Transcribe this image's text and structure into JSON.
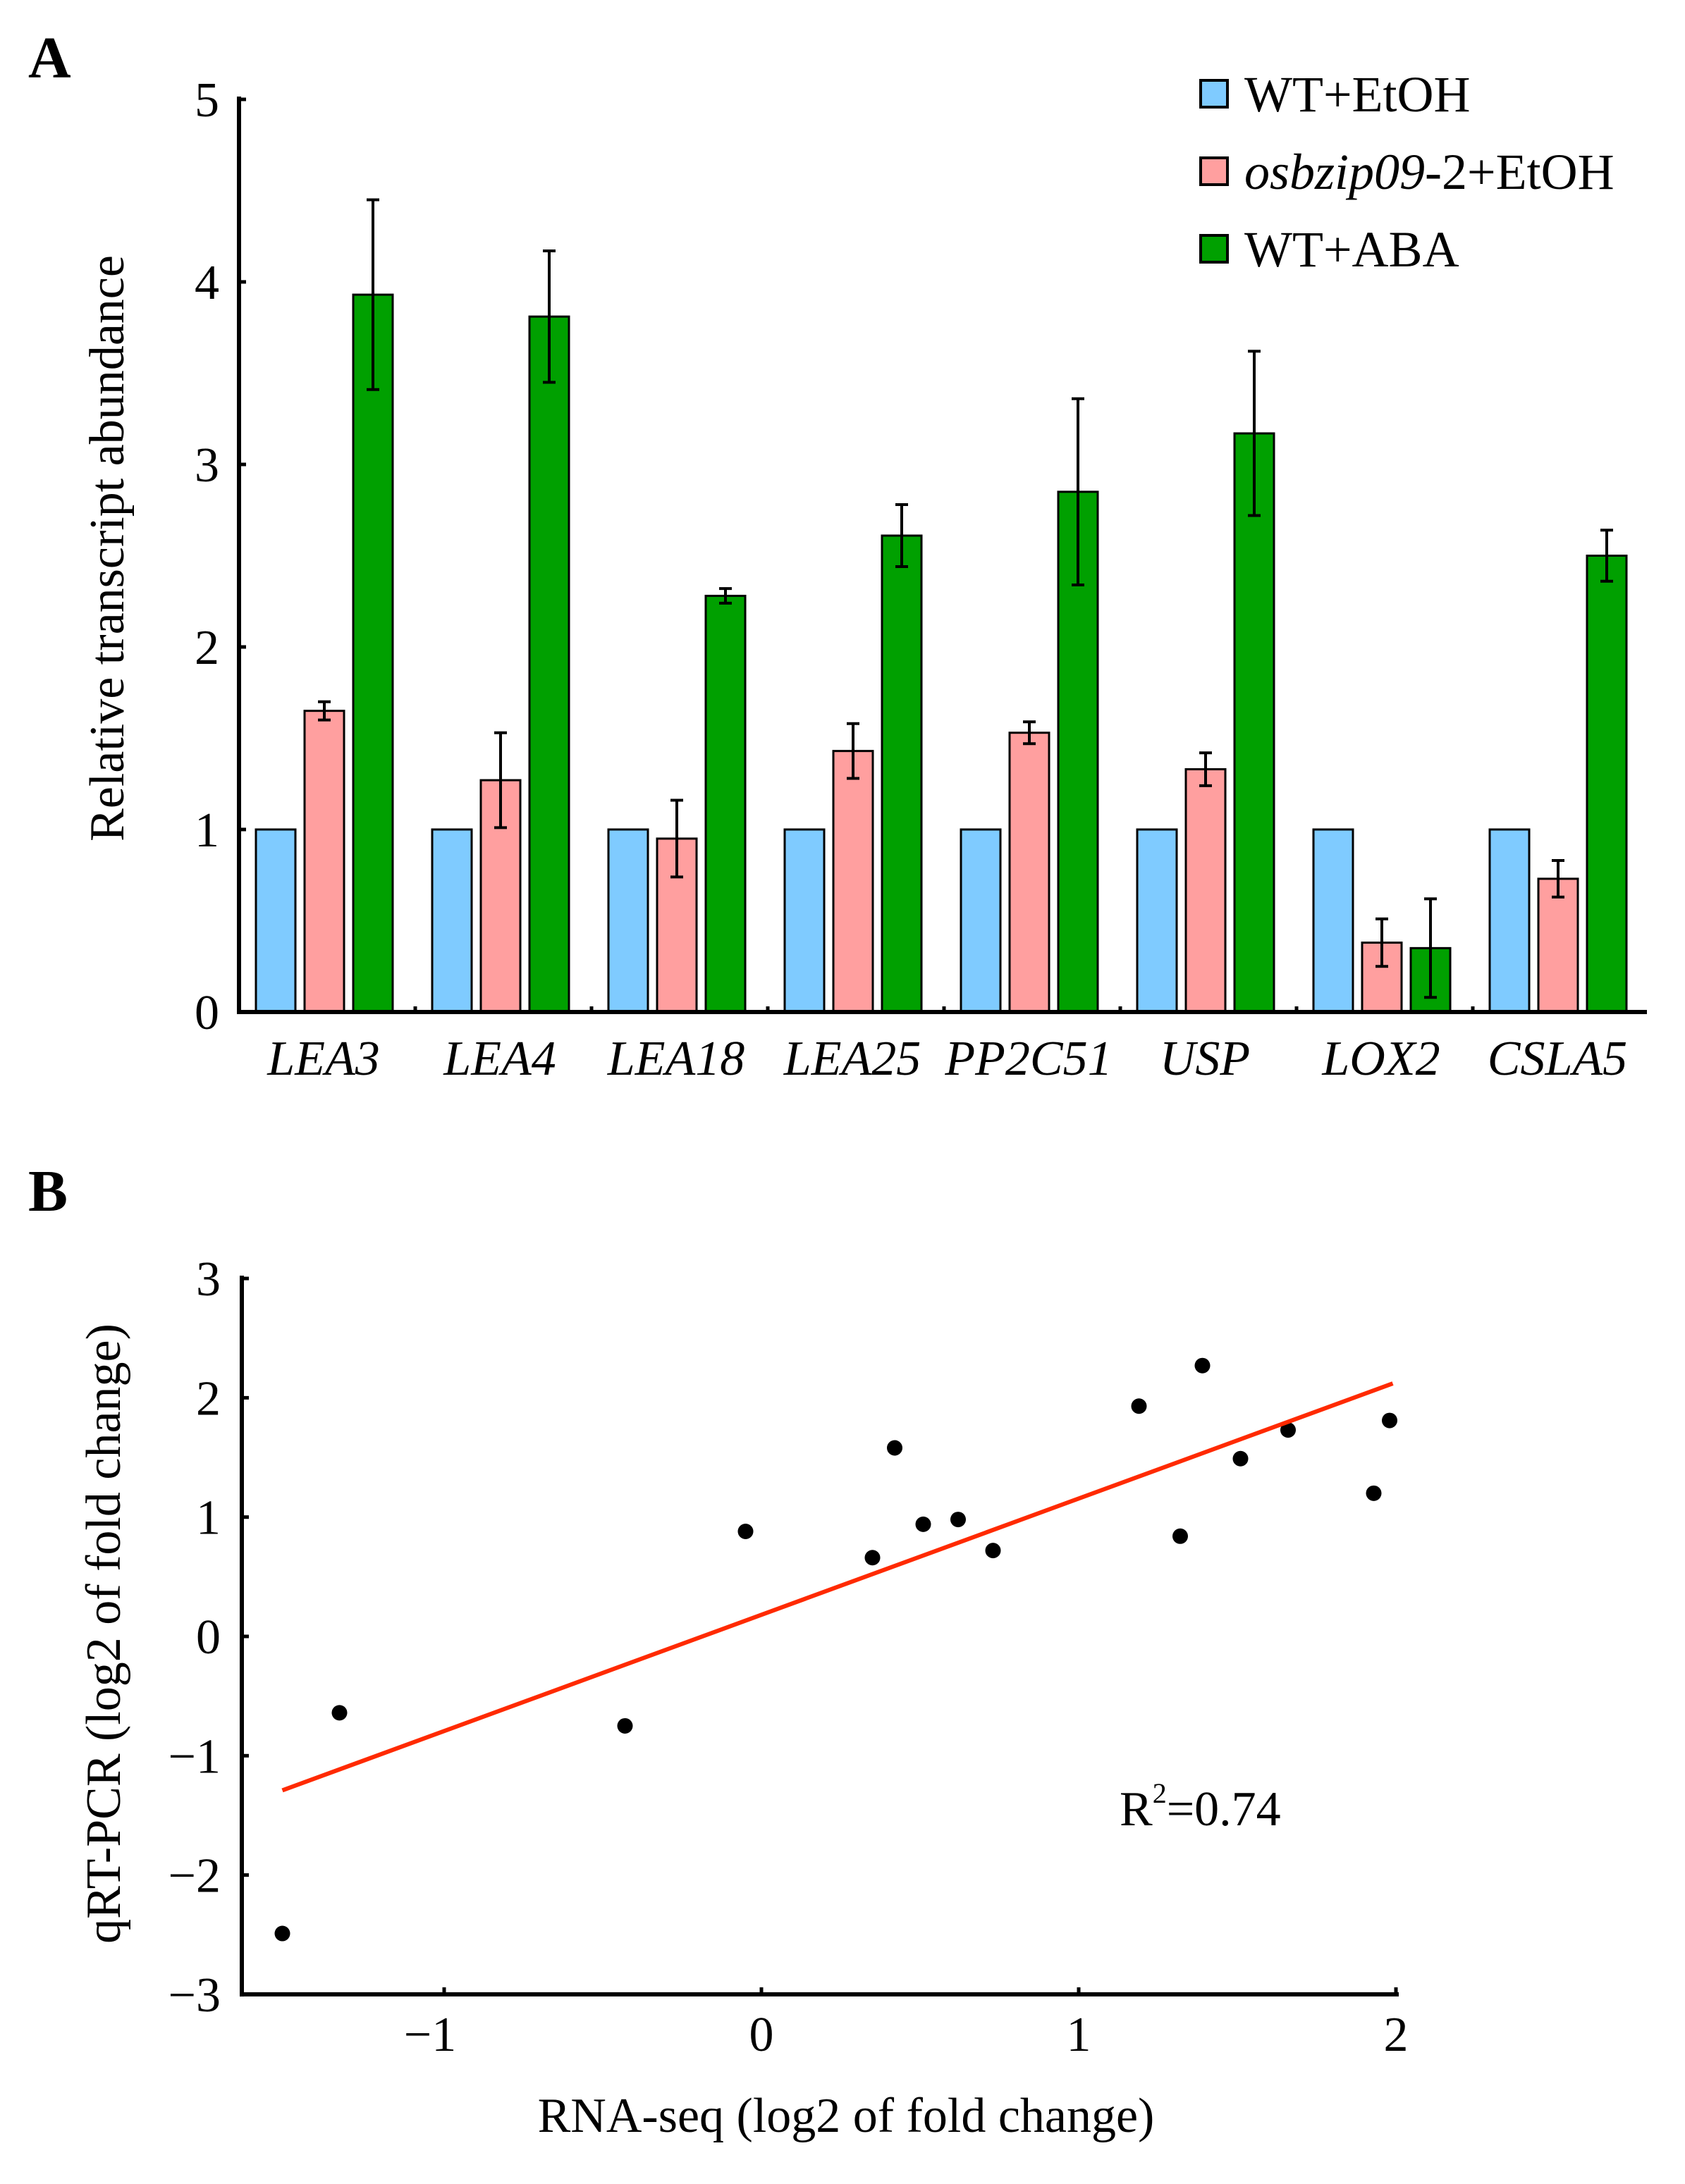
{
  "panels": {
    "a": "A",
    "b": "B"
  },
  "chart_data": [
    {
      "type": "bar",
      "ylabel": "Relative transcript abundance",
      "xlabel": "",
      "ylim": [
        0,
        5
      ],
      "yticks": [
        "0",
        "1",
        "2",
        "3",
        "4",
        "5"
      ],
      "categories": [
        "LEA3",
        "LEA4",
        "LEA18",
        "LEA25",
        "PP2C51",
        "USP",
        "LOX2",
        "CSLA5"
      ],
      "legend_position": "top-right",
      "series": [
        {
          "name": "WT+EtOH",
          "name_italic": "",
          "name_rest": "WT+EtOH",
          "color": "#7fcbff",
          "values": [
            1,
            1,
            1,
            1,
            1,
            1,
            1,
            1
          ],
          "errors": [
            0,
            0,
            0,
            0,
            0,
            0,
            0,
            0
          ]
        },
        {
          "name": "osbzip09-2+EtOH",
          "name_italic": "osbzip09",
          "name_rest": "-2+EtOH",
          "color": "#ff9f9f",
          "values": [
            1.65,
            1.27,
            0.95,
            1.43,
            1.53,
            1.33,
            0.38,
            0.73
          ],
          "errors": [
            0.05,
            0.26,
            0.21,
            0.15,
            0.06,
            0.09,
            0.13,
            0.1
          ]
        },
        {
          "name": "WT+ABA",
          "name_italic": "",
          "name_rest": "WT+ABA",
          "color": "#00a000",
          "values": [
            3.93,
            3.81,
            2.28,
            2.61,
            2.85,
            3.17,
            0.35,
            2.5
          ],
          "errors": [
            0.52,
            0.36,
            0.04,
            0.17,
            0.51,
            0.45,
            0.27,
            0.14
          ]
        }
      ]
    },
    {
      "type": "scatter",
      "xlabel": "RNA-seq (log2 of fold change)",
      "ylabel": "qRT-PCR (log2 of fold change)",
      "xlim": [
        -1.6,
        2.0
      ],
      "ylim": [
        -3,
        3
      ],
      "xticks": [
        -1,
        0,
        1,
        2
      ],
      "xtick_labels": [
        "−1",
        "0",
        "1",
        "2"
      ],
      "yticks": [
        -3,
        -2,
        -1,
        0,
        1,
        2,
        3
      ],
      "ytick_labels": [
        "−3",
        "−2",
        "−1",
        "0",
        "1",
        "2",
        "3"
      ],
      "points": [
        [
          -1.51,
          -2.49
        ],
        [
          -1.33,
          -0.64
        ],
        [
          -0.43,
          -0.75
        ],
        [
          -0.05,
          0.88
        ],
        [
          0.35,
          0.66
        ],
        [
          0.42,
          1.58
        ],
        [
          0.51,
          0.94
        ],
        [
          0.62,
          0.98
        ],
        [
          0.73,
          0.72
        ],
        [
          1.19,
          1.93
        ],
        [
          1.32,
          0.84
        ],
        [
          1.39,
          2.27
        ],
        [
          1.51,
          1.49
        ],
        [
          1.66,
          1.73
        ],
        [
          1.93,
          1.2
        ],
        [
          1.98,
          1.81
        ]
      ],
      "point_color": "#000000",
      "fit_line": {
        "x": [
          -1.51,
          1.99
        ],
        "y": [
          -1.29,
          2.12
        ],
        "color": "#ff2a00"
      },
      "annotation": {
        "base": "R",
        "sup": "2",
        "rest": "=0.74"
      }
    }
  ]
}
